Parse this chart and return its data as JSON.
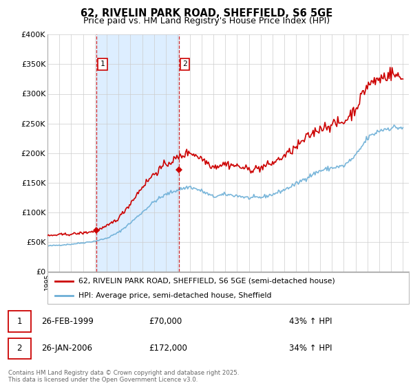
{
  "title": "62, RIVELIN PARK ROAD, SHEFFIELD, S6 5GE",
  "subtitle": "Price paid vs. HM Land Registry's House Price Index (HPI)",
  "legend_line1": "62, RIVELIN PARK ROAD, SHEFFIELD, S6 5GE (semi-detached house)",
  "legend_line2": "HPI: Average price, semi-detached house, Sheffield",
  "sale1_label": "1",
  "sale1_date": "26-FEB-1999",
  "sale1_price": "£70,000",
  "sale1_hpi": "43% ↑ HPI",
  "sale2_label": "2",
  "sale2_date": "26-JAN-2006",
  "sale2_price": "£172,000",
  "sale2_hpi": "34% ↑ HPI",
  "footer": "Contains HM Land Registry data © Crown copyright and database right 2025.\nThis data is licensed under the Open Government Licence v3.0.",
  "red_color": "#cc0000",
  "blue_color": "#6baed6",
  "shade_color": "#ddeeff",
  "sale_marker_color": "#cc0000",
  "vline_color": "#cc0000",
  "grid_color": "#cccccc",
  "bg_color": "#ffffff",
  "ylim": [
    0,
    400000
  ],
  "yticks": [
    0,
    50000,
    100000,
    150000,
    200000,
    250000,
    300000,
    350000,
    400000
  ],
  "sale1_x": 1999.15,
  "sale1_value": 70000,
  "sale2_x": 2006.08,
  "sale2_value": 172000,
  "xlim_left": 1995.0,
  "xlim_right": 2025.5
}
